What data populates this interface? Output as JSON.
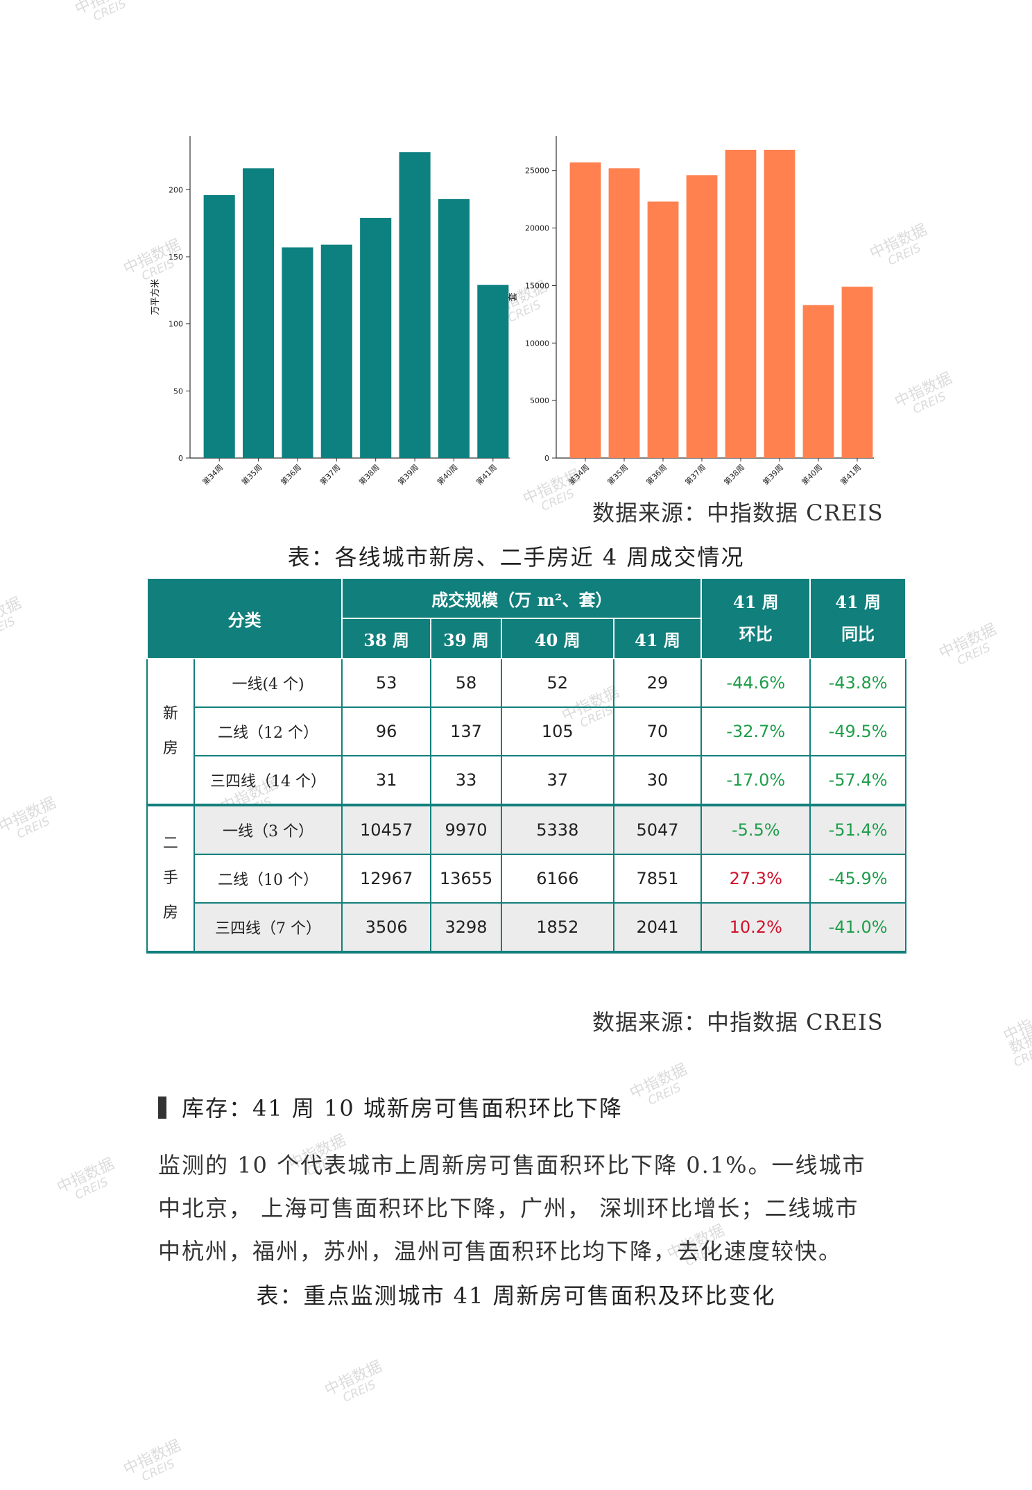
{
  "charts": {
    "left": {
      "type": "bar",
      "ylabel": "万平方米",
      "categories": [
        "第34周",
        "第35周",
        "第36周",
        "第37周",
        "第38周",
        "第39周",
        "第40周",
        "第41周"
      ],
      "values": [
        196,
        216,
        157,
        159,
        179,
        228,
        193,
        129
      ],
      "ylim": [
        0,
        240
      ],
      "yticks": [
        0,
        50,
        100,
        150,
        200
      ],
      "color": "#0d8080"
    },
    "right": {
      "type": "bar",
      "ylabel": "套",
      "categories": [
        "第34周",
        "第35周",
        "第36周",
        "第37周",
        "第38周",
        "第39周",
        "第40周",
        "第41周"
      ],
      "values": [
        25700,
        25200,
        22300,
        24600,
        26800,
        26800,
        13300,
        14900
      ],
      "ylim": [
        0,
        28000
      ],
      "yticks": [
        0,
        5000,
        10000,
        15000,
        20000,
        25000
      ],
      "color": "#ff8150"
    }
  },
  "source1": "数据来源：中指数据 CREIS",
  "table_caption": "表：各线城市新房、二手房近 4 周成交情况",
  "table": {
    "h_category": "分类",
    "h_scale": "成交规模（万 m²、套）",
    "h_weeks": [
      "38 周",
      "39 周",
      "40 周",
      "41 周"
    ],
    "h_mom_1": "41 周",
    "h_mom_2": "环比",
    "h_yoy_1": "41 周",
    "h_yoy_2": "同比",
    "group_new_1": "新",
    "group_new_2": "房",
    "group_second_1": "二",
    "group_second_2": "手",
    "group_second_3": "房",
    "rows": [
      {
        "label": "一线(4 个)",
        "w38": "53",
        "w39": "58",
        "w40": "52",
        "w41": "29",
        "mom": "-44.6%",
        "yoy": "-43.8%"
      },
      {
        "label": "二线（12 个）",
        "w38": "96",
        "w39": "137",
        "w40": "105",
        "w41": "70",
        "mom": "-32.7%",
        "yoy": "-49.5%"
      },
      {
        "label": "三四线（14 个）",
        "w38": "31",
        "w39": "33",
        "w40": "37",
        "w41": "30",
        "mom": "-17.0%",
        "yoy": "-57.4%"
      },
      {
        "label": "一线（3 个）",
        "w38": "10457",
        "w39": "9970",
        "w40": "5338",
        "w41": "5047",
        "mom": "-5.5%",
        "yoy": "-51.4%"
      },
      {
        "label": "二线（10 个）",
        "w38": "12967",
        "w39": "13655",
        "w40": "6166",
        "w41": "7851",
        "mom": "27.3%",
        "yoy": "-45.9%"
      },
      {
        "label": "三四线（7 个）",
        "w38": "3506",
        "w39": "3298",
        "w40": "1852",
        "w41": "2041",
        "mom": "10.2%",
        "yoy": "-41.0%"
      }
    ]
  },
  "source2": "数据来源：中指数据 CREIS",
  "section_heading": "库存：41 周 10 城新房可售面积环比下降",
  "paragraph": "监测的 10 个代表城市上周新房可售面积环比下降 0.1%。一线城市中北京， 上海可售面积环比下降，广州， 深圳环比增长；二线城市中杭州，福州，苏州，温州可售面积环比均下降，去化速度较快。",
  "table2_caption": "表：重点监测城市 41 周新房可售面积及环比变化",
  "watermark": {
    "line1": "中指数据",
    "line2": "CREIS"
  },
  "colors": {
    "teal": "#117f7c",
    "bar_teal": "#0d8080",
    "bar_orange": "#ff8150",
    "negative": "#1e9e4a",
    "positive": "#d0112b"
  }
}
